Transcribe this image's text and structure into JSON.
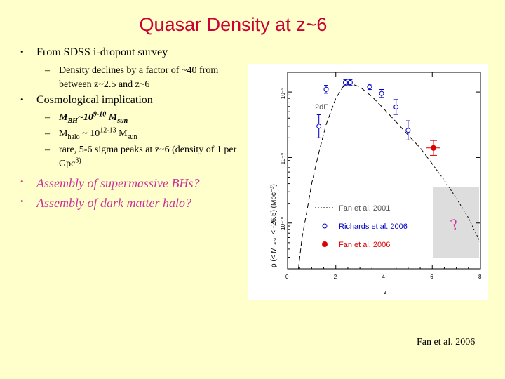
{
  "slide": {
    "title": "Quasar Density at z~6",
    "bullet1": "From SDSS i-dropout survey",
    "sub1": "Density declines by a factor of ~40 from between z~2.5 and z~6",
    "bullet2": "Cosmological implication",
    "sub2_a": "M",
    "sub2_a_sub": "BH",
    "sub2_a_mid": "~10",
    "sub2_a_sup": "9-10",
    "sub2_a_m": " M",
    "sub2_a_sun": "sun",
    "sub2_b": "M",
    "sub2_b_sub": "halo",
    "sub2_b_mid": " ~ 10",
    "sub2_b_sup": "12-13",
    "sub2_b_m": " M",
    "sub2_b_sun": "sun",
    "sub2_c": "rare, 5-6 sigma peaks at z~6 (density of 1 per Gpc",
    "sub2_c_sup": "3)",
    "bullet3": "Assembly of supermassive BHs?",
    "bullet4": "Assembly of dark matter halo?",
    "caption": "Fan et al. 2006"
  },
  "figure": {
    "ylabel": "ρ (< M₁₄₅₀ < -26.5) (Mpc⁻³)",
    "xlabel": "z",
    "xticks": [
      "0",
      "2",
      "4",
      "6",
      "8"
    ],
    "yticks": [
      "10⁻⁸",
      "10⁻⁹",
      "10⁻¹⁰"
    ],
    "label_2df": "2dF",
    "legend": [
      "Fan et al. 2001",
      "Richards et al. 2006",
      "Fan et al. 2006"
    ],
    "question": "?",
    "colors": {
      "richards": "#0000cc",
      "fan2006": "#dd0000",
      "question": "#cc3399",
      "shade": "#dddddd"
    }
  },
  "chart_data": {
    "type": "scatter",
    "xlabel": "z",
    "ylabel": "ρ (< M1450 < -26.5) (Mpc⁻³)",
    "xlim": [
      0,
      8
    ],
    "ylog": true,
    "ylim": [
      2e-11,
      2e-08
    ],
    "series": [
      {
        "name": "Richards et al. 2006",
        "points": [
          [
            1.3,
            3e-09
          ],
          [
            1.6,
            1.1e-08
          ],
          [
            2.4,
            1.4e-08
          ],
          [
            2.6,
            1.4e-08
          ],
          [
            3.4,
            1.2e-08
          ],
          [
            3.9,
            9.5e-09
          ],
          [
            4.5,
            5.9e-09
          ],
          [
            5.0,
            2.6e-09
          ]
        ]
      },
      {
        "name": "Fan et al. 2006",
        "points": [
          [
            6.05,
            1.4e-09
          ]
        ]
      },
      {
        "name": "Fan et al. 2001",
        "line": true
      }
    ]
  }
}
